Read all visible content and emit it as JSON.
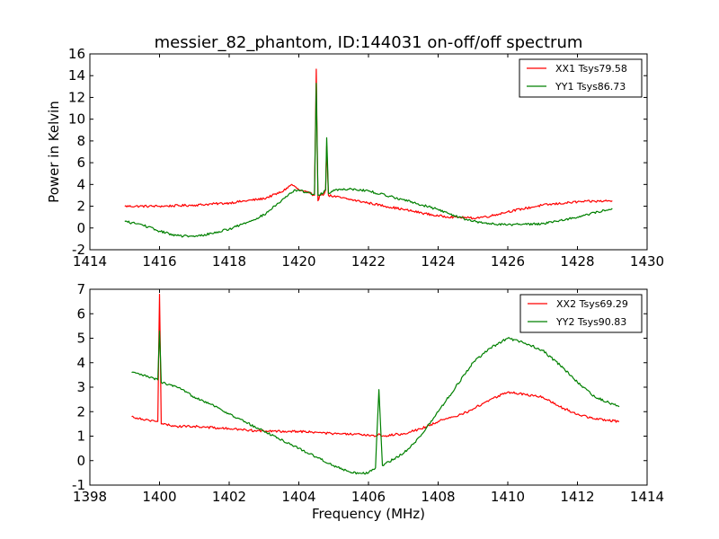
{
  "figure_title": "messier_82_phantom, ID:144031 on-off/off spectrum",
  "colors": {
    "red": "#ff0000",
    "green": "#008000",
    "axis": "#000000"
  },
  "chart_data": [
    {
      "type": "line",
      "title": "messier_82_phantom, ID:144031 on-off/off spectrum",
      "xlabel": "",
      "ylabel": "Power in Kelvin",
      "xlim": [
        1414,
        1430
      ],
      "ylim": [
        -2,
        16
      ],
      "xticks": [
        1414,
        1416,
        1418,
        1420,
        1422,
        1424,
        1426,
        1428,
        1430
      ],
      "yticks": [
        -2,
        0,
        2,
        4,
        6,
        8,
        10,
        12,
        14,
        16
      ],
      "legend": "top-right",
      "series": [
        {
          "name": "XX1 Tsys79.58",
          "color": "#ff0000",
          "x": [
            1415.0,
            1416.0,
            1417.0,
            1418.0,
            1419.0,
            1419.5,
            1419.8,
            1420.0,
            1420.3,
            1420.45,
            1420.5,
            1420.55,
            1420.6,
            1420.7,
            1420.77,
            1420.8,
            1420.85,
            1421.0,
            1421.5,
            1422.0,
            1423.0,
            1424.0,
            1424.5,
            1425.0,
            1425.5,
            1426.0,
            1427.0,
            1428.0,
            1429.0
          ],
          "y": [
            2.0,
            2.0,
            2.1,
            2.3,
            2.7,
            3.3,
            4.0,
            3.5,
            3.2,
            3.0,
            14.6,
            2.5,
            3.0,
            3.0,
            3.5,
            7.5,
            3.0,
            2.9,
            2.6,
            2.3,
            1.7,
            1.1,
            1.0,
            0.9,
            1.1,
            1.5,
            2.1,
            2.4,
            2.5
          ]
        },
        {
          "name": "YY1 Tsys86.73",
          "color": "#008000",
          "x": [
            1415.0,
            1415.5,
            1416.0,
            1416.5,
            1417.0,
            1417.5,
            1418.0,
            1418.5,
            1419.0,
            1419.5,
            1419.9,
            1420.2,
            1420.45,
            1420.5,
            1420.55,
            1420.7,
            1420.77,
            1420.8,
            1420.85,
            1421.0,
            1421.5,
            1422.0,
            1423.0,
            1424.0,
            1424.5,
            1425.0,
            1425.5,
            1426.0,
            1427.0,
            1428.0,
            1429.0
          ],
          "y": [
            0.6,
            0.3,
            -0.3,
            -0.7,
            -0.8,
            -0.5,
            -0.1,
            0.5,
            1.2,
            2.5,
            3.5,
            3.3,
            3.1,
            13.3,
            3.0,
            3.2,
            3.5,
            8.3,
            3.2,
            3.5,
            3.6,
            3.4,
            2.6,
            1.7,
            1.1,
            0.6,
            0.4,
            0.3,
            0.4,
            1.0,
            1.8
          ]
        }
      ]
    },
    {
      "type": "line",
      "title": "",
      "xlabel": "Frequency (MHz)",
      "ylabel": "",
      "xlim": [
        1398,
        1414
      ],
      "ylim": [
        -1,
        7
      ],
      "xticks": [
        1398,
        1400,
        1402,
        1404,
        1406,
        1408,
        1410,
        1412,
        1414
      ],
      "yticks": [
        -1,
        0,
        1,
        2,
        3,
        4,
        5,
        6,
        7
      ],
      "legend": "top-right",
      "series": [
        {
          "name": "XX2 Tsys69.29",
          "color": "#ff0000",
          "x": [
            1399.2,
            1399.5,
            1399.95,
            1400.0,
            1400.05,
            1400.5,
            1401.0,
            1402.0,
            1403.0,
            1404.0,
            1405.0,
            1406.0,
            1406.2,
            1406.3,
            1406.4,
            1407.0,
            1407.5,
            1408.0,
            1408.5,
            1409.0,
            1409.5,
            1410.0,
            1410.5,
            1411.0,
            1411.5,
            1412.0,
            1412.5,
            1413.2
          ],
          "y": [
            1.8,
            1.7,
            1.6,
            6.8,
            1.5,
            1.4,
            1.4,
            1.3,
            1.2,
            1.2,
            1.1,
            1.05,
            1.0,
            1.1,
            1.0,
            1.1,
            1.3,
            1.6,
            1.8,
            2.1,
            2.5,
            2.8,
            2.7,
            2.6,
            2.2,
            1.9,
            1.7,
            1.6
          ]
        },
        {
          "name": "YY2 Tsys90.83",
          "color": "#008000",
          "x": [
            1399.2,
            1399.5,
            1399.95,
            1400.0,
            1400.05,
            1400.5,
            1401.0,
            1401.5,
            1402.0,
            1403.0,
            1404.0,
            1405.0,
            1405.5,
            1406.0,
            1406.2,
            1406.3,
            1406.4,
            1407.0,
            1407.5,
            1408.0,
            1408.5,
            1409.0,
            1409.5,
            1410.0,
            1410.5,
            1411.0,
            1411.5,
            1412.0,
            1412.5,
            1413.2
          ],
          "y": [
            3.6,
            3.5,
            3.3,
            5.3,
            3.2,
            3.0,
            2.6,
            2.3,
            1.9,
            1.2,
            0.5,
            -0.2,
            -0.5,
            -0.5,
            -0.3,
            2.9,
            -0.2,
            0.3,
            1.0,
            2.0,
            3.0,
            4.0,
            4.6,
            5.0,
            4.8,
            4.5,
            3.9,
            3.2,
            2.6,
            2.2
          ]
        }
      ]
    }
  ]
}
